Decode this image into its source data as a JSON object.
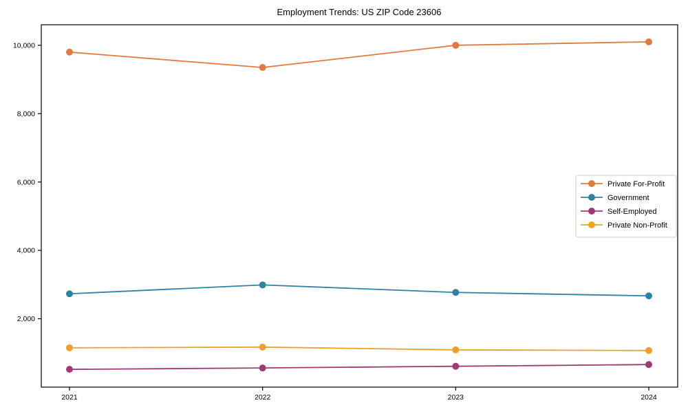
{
  "page": {
    "title": "Employment Trends: US ZIP Code 23606"
  },
  "chart_data": {
    "type": "line",
    "title": "Employment Trends: US ZIP Code 23606",
    "xlabel": "",
    "ylabel": "",
    "x": [
      2021,
      2022,
      2023,
      2024
    ],
    "x_tick_labels": [
      "2021",
      "2022",
      "2023",
      "2024"
    ],
    "y_tick_values": [
      2000,
      4000,
      6000,
      8000,
      10000
    ],
    "y_tick_labels": [
      "2,000",
      "4,000",
      "6,000",
      "8,000",
      "10,000"
    ],
    "ylim": [
      0,
      10600
    ],
    "grid": false,
    "legend_position": "center right",
    "marker": "circle",
    "series": [
      {
        "name": "Private For-Profit",
        "color": "#e2793f",
        "values": [
          9800,
          9350,
          10000,
          10100
        ]
      },
      {
        "name": "Government",
        "color": "#3181a5",
        "values": [
          2730,
          2990,
          2770,
          2670
        ]
      },
      {
        "name": "Self-Employed",
        "color": "#a03a72",
        "values": [
          520,
          560,
          610,
          660
        ]
      },
      {
        "name": "Private Non-Profit",
        "color": "#f0a02a",
        "values": [
          1150,
          1170,
          1090,
          1070
        ]
      }
    ],
    "axis_color": "#000000",
    "legend_border_color": "#cccccc",
    "background_color": "#ffffff"
  }
}
